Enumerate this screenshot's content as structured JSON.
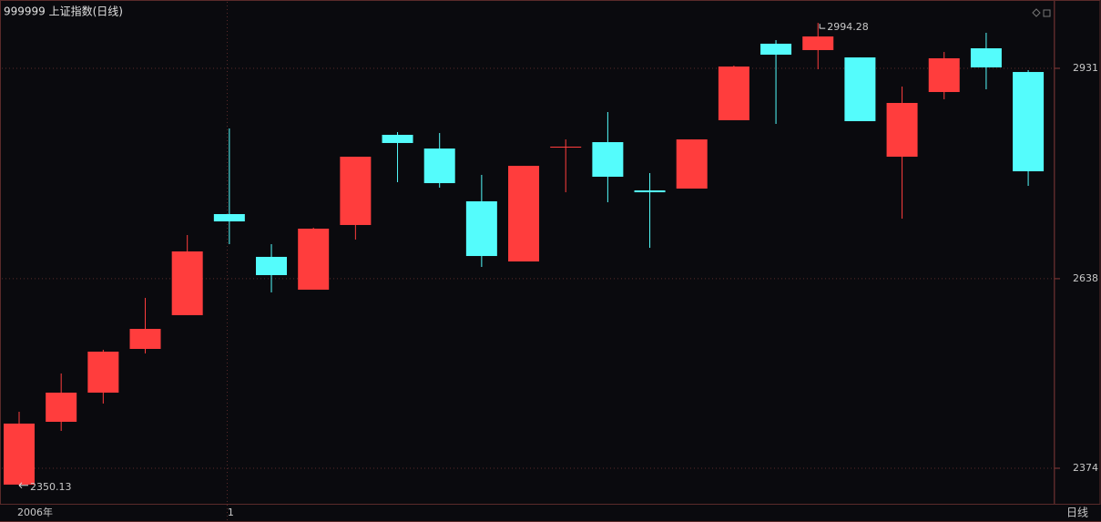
{
  "chart_data": {
    "type": "candlestick",
    "title": "999999 上证指数(日线)",
    "period_label": "日线",
    "categories": [
      "2006年",
      null,
      null,
      null,
      null,
      "1",
      null,
      null,
      null,
      null,
      null,
      null,
      null,
      null,
      null,
      null,
      null,
      null,
      null,
      null,
      null,
      null,
      null,
      null,
      null
    ],
    "open": [
      2351.2,
      2438.7,
      2479.3,
      2540.2,
      2587.2,
      2728.0,
      2668.4,
      2622.7,
      2712.8,
      2838.4,
      2819.3,
      2745.8,
      2662.0,
      2820.6,
      2828.2,
      2761.0,
      2763.5,
      2858.7,
      2965.3,
      2956.4,
      2946.2,
      2807.9,
      2898.0,
      2958.9,
      2925.9
    ],
    "high": [
      2452.7,
      2506.0,
      2539.0,
      2611.3,
      2698.8,
      2847.3,
      2686.1,
      2709.0,
      2807.9,
      2842.2,
      2840.9,
      2782.6,
      2795.2,
      2832.0,
      2870.1,
      2785.1,
      2832.0,
      2934.8,
      2970.3,
      2994.28,
      2946.2,
      2905.6,
      2953.8,
      2980.5,
      2928.5
    ],
    "low": [
      2350.13,
      2426.0,
      2464.1,
      2533.9,
      2587.2,
      2686.1,
      2618.9,
      2622.7,
      2692.5,
      2772.4,
      2764.8,
      2654.4,
      2662.0,
      2758.4,
      2744.5,
      2681.0,
      2763.5,
      2858.7,
      2853.6,
      2929.7,
      2857.4,
      2721.6,
      2887.9,
      2901.8,
      2767.3
    ],
    "close": [
      2436.2,
      2479.3,
      2536.4,
      2568.1,
      2676.0,
      2717.8,
      2643.0,
      2707.7,
      2807.9,
      2827.0,
      2771.1,
      2669.6,
      2795.2,
      2821.9,
      2780.0,
      2758.4,
      2832.0,
      2933.5,
      2950.0,
      2975.4,
      2857.4,
      2882.8,
      2945.0,
      2932.3,
      2787.6
    ],
    "up_color": "#ff3d3d",
    "down_color": "#54fcfc",
    "ylim": [
      2324.5,
      3021.1
    ],
    "yticks": [
      2374,
      2638,
      2931
    ],
    "grid": true
  }
}
